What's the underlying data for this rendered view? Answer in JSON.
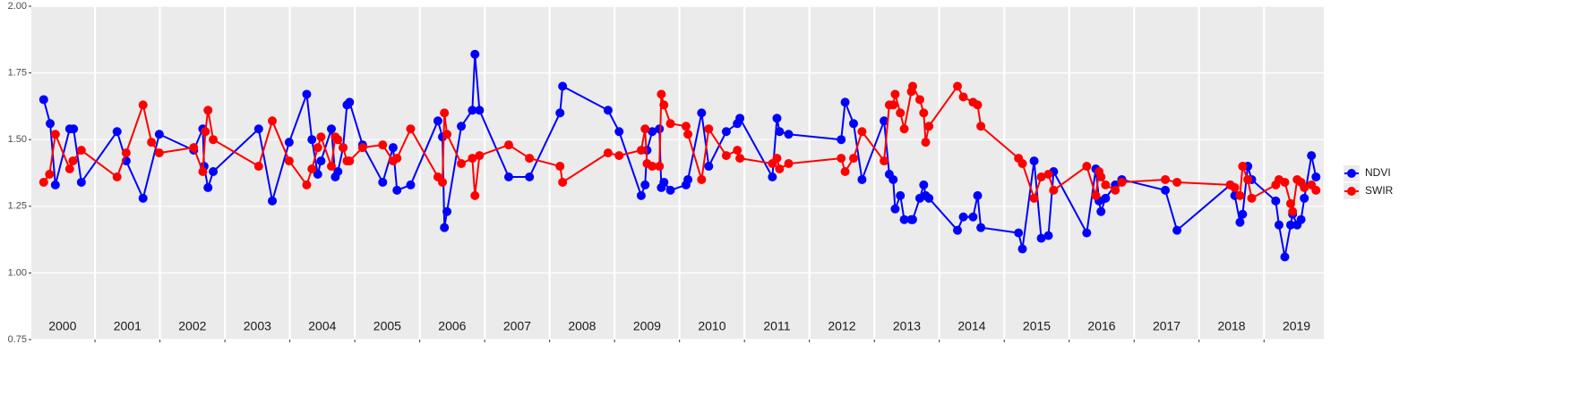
{
  "chart_data": {
    "type": "line",
    "xlim": [
      2000.02,
      2019.92
    ],
    "ylim": [
      0.75,
      2.0
    ],
    "yticks": [
      0.75,
      {
        "value": 1,
        "label": "1.00"
      },
      1.25,
      {
        "value": 1.5,
        "label": "1.50"
      },
      1.75,
      {
        "value": 2,
        "label": "2.00"
      }
    ],
    "xticks": [
      {
        "value": 2000.5,
        "label": "2000"
      },
      {
        "value": 2001.5,
        "label": "2001"
      },
      {
        "value": 2002.5,
        "label": "2002"
      },
      {
        "value": 2003.5,
        "label": "2003"
      },
      {
        "value": 2004.5,
        "label": "2004"
      },
      {
        "value": 2005.5,
        "label": "2005"
      },
      {
        "value": 2006.5,
        "label": "2006"
      },
      {
        "value": 2007.5,
        "label": "2007"
      },
      {
        "value": 2008.5,
        "label": "2008"
      },
      {
        "value": 2009.5,
        "label": "2009"
      },
      {
        "value": 2010.5,
        "label": "2010"
      },
      {
        "value": 2011.5,
        "label": "2011"
      },
      {
        "value": 2012.5,
        "label": "2012"
      },
      {
        "value": 2013.5,
        "label": "2013"
      },
      {
        "value": 2014.5,
        "label": "2014"
      },
      {
        "value": 2015.5,
        "label": "2015"
      },
      {
        "value": 2016.5,
        "label": "2016"
      },
      {
        "value": 2017.5,
        "label": "2017"
      },
      {
        "value": 2018.5,
        "label": "2018"
      },
      {
        "value": 2019.5,
        "label": "2019"
      }
    ],
    "xgrid": [
      2001,
      2002,
      2003,
      2004,
      2005,
      2006,
      2007,
      2008,
      2009,
      2010,
      2011,
      2012,
      2013,
      2014,
      2015,
      2016,
      2017,
      2018,
      2019
    ],
    "grid": true,
    "legend": "right",
    "series": [
      {
        "name": "NDVI",
        "color": "#0000ff",
        "x": [
          2000.21,
          2000.31,
          2000.39,
          2000.61,
          2000.67,
          2000.79,
          2001.34,
          2001.48,
          2001.74,
          2001.99,
          2002.52,
          2002.66,
          2002.68,
          2002.74,
          2002.82,
          2003.52,
          2003.73,
          2003.99,
          2004.26,
          2004.34,
          2004.43,
          2004.48,
          2004.64,
          2004.7,
          2004.74,
          2004.82,
          2004.88,
          2004.92,
          2005.12,
          2005.43,
          2005.59,
          2005.65,
          2005.86,
          2006.28,
          2006.35,
          2006.38,
          2006.42,
          2006.64,
          2006.81,
          2006.85,
          2006.92,
          2007.37,
          2007.69,
          2008.16,
          2008.2,
          2008.9,
          2009.07,
          2009.41,
          2009.47,
          2009.5,
          2009.58,
          2009.69,
          2009.72,
          2009.76,
          2009.86,
          2010.1,
          2010.13,
          2010.34,
          2010.45,
          2010.72,
          2010.89,
          2010.93,
          2011.43,
          2011.5,
          2011.54,
          2011.68,
          2012.49,
          2012.55,
          2012.68,
          2012.81,
          2013.15,
          2013.23,
          2013.29,
          2013.32,
          2013.4,
          2013.46,
          2013.57,
          2013.59,
          2013.7,
          2013.76,
          2013.79,
          2013.84,
          2014.28,
          2014.37,
          2014.52,
          2014.59,
          2014.64,
          2015.22,
          2015.28,
          2015.46,
          2015.57,
          2015.68,
          2015.76,
          2016.27,
          2016.41,
          2016.46,
          2016.49,
          2016.56,
          2016.71,
          2016.81,
          2017.48,
          2017.66,
          2018.48,
          2018.55,
          2018.63,
          2018.67,
          2018.75,
          2018.81,
          2019.18,
          2019.23,
          2019.32,
          2019.41,
          2019.44,
          2019.51,
          2019.57,
          2019.62,
          2019.73,
          2019.8
        ],
        "values": [
          1.65,
          1.56,
          1.33,
          1.54,
          1.54,
          1.34,
          1.53,
          1.42,
          1.28,
          1.52,
          1.46,
          1.54,
          1.4,
          1.32,
          1.38,
          1.54,
          1.27,
          1.49,
          1.67,
          1.5,
          1.37,
          1.42,
          1.54,
          1.36,
          1.38,
          1.47,
          1.63,
          1.64,
          1.48,
          1.34,
          1.47,
          1.31,
          1.33,
          1.57,
          1.51,
          1.17,
          1.23,
          1.55,
          1.61,
          1.82,
          1.61,
          1.36,
          1.36,
          1.6,
          1.7,
          1.61,
          1.53,
          1.29,
          1.33,
          1.46,
          1.53,
          1.54,
          1.32,
          1.34,
          1.31,
          1.33,
          1.35,
          1.6,
          1.4,
          1.53,
          1.56,
          1.58,
          1.36,
          1.58,
          1.53,
          1.52,
          1.5,
          1.64,
          1.56,
          1.35,
          1.57,
          1.37,
          1.35,
          1.24,
          1.29,
          1.2,
          1.2,
          1.2,
          1.28,
          1.33,
          1.29,
          1.28,
          1.16,
          1.21,
          1.21,
          1.29,
          1.17,
          1.15,
          1.09,
          1.42,
          1.13,
          1.14,
          1.38,
          1.15,
          1.39,
          1.27,
          1.23,
          1.28,
          1.33,
          1.35,
          1.31,
          1.16,
          1.33,
          1.29,
          1.19,
          1.22,
          1.4,
          1.35,
          1.27,
          1.18,
          1.06,
          1.18,
          1.22,
          1.18,
          1.2,
          1.28,
          1.44,
          1.36
        ]
      },
      {
        "name": "SWIR",
        "color": "#ff0000",
        "x": [
          2000.21,
          2000.3,
          2000.39,
          2000.61,
          2000.66,
          2000.79,
          2001.34,
          2001.48,
          2001.74,
          2001.87,
          2001.99,
          2002.52,
          2002.66,
          2002.7,
          2002.74,
          2002.82,
          2003.52,
          2003.73,
          2003.99,
          2004.26,
          2004.34,
          2004.43,
          2004.48,
          2004.64,
          2004.7,
          2004.74,
          2004.82,
          2004.88,
          2004.92,
          2005.12,
          2005.43,
          2005.59,
          2005.65,
          2005.86,
          2006.28,
          2006.35,
          2006.38,
          2006.42,
          2006.64,
          2006.81,
          2006.85,
          2006.92,
          2007.37,
          2007.69,
          2008.16,
          2008.2,
          2008.9,
          2009.07,
          2009.41,
          2009.47,
          2009.5,
          2009.58,
          2009.69,
          2009.72,
          2009.76,
          2009.86,
          2010.1,
          2010.13,
          2010.34,
          2010.45,
          2010.72,
          2010.89,
          2010.93,
          2011.43,
          2011.5,
          2011.54,
          2011.68,
          2012.49,
          2012.55,
          2012.68,
          2012.81,
          2013.15,
          2013.23,
          2013.29,
          2013.32,
          2013.4,
          2013.46,
          2013.57,
          2013.59,
          2013.7,
          2013.76,
          2013.79,
          2013.84,
          2014.28,
          2014.37,
          2014.52,
          2014.59,
          2014.64,
          2015.22,
          2015.28,
          2015.46,
          2015.57,
          2015.68,
          2015.76,
          2016.27,
          2016.41,
          2016.46,
          2016.49,
          2016.56,
          2016.71,
          2016.81,
          2017.48,
          2017.66,
          2018.48,
          2018.55,
          2018.63,
          2018.67,
          2018.75,
          2018.81,
          2019.18,
          2019.23,
          2019.32,
          2019.41,
          2019.44,
          2019.51,
          2019.57,
          2019.62,
          2019.73,
          2019.8
        ],
        "values": [
          1.34,
          1.37,
          1.52,
          1.39,
          1.42,
          1.46,
          1.36,
          1.45,
          1.63,
          1.49,
          1.45,
          1.47,
          1.38,
          1.53,
          1.61,
          1.5,
          1.4,
          1.57,
          1.42,
          1.33,
          1.39,
          1.47,
          1.51,
          1.4,
          1.51,
          1.5,
          1.47,
          1.42,
          1.42,
          1.47,
          1.48,
          1.42,
          1.43,
          1.54,
          1.36,
          1.34,
          1.6,
          1.52,
          1.41,
          1.43,
          1.29,
          1.44,
          1.48,
          1.43,
          1.4,
          1.34,
          1.45,
          1.44,
          1.46,
          1.54,
          1.41,
          1.4,
          1.4,
          1.67,
          1.63,
          1.56,
          1.55,
          1.52,
          1.35,
          1.54,
          1.44,
          1.46,
          1.43,
          1.41,
          1.43,
          1.39,
          1.41,
          1.43,
          1.38,
          1.43,
          1.53,
          1.42,
          1.63,
          1.63,
          1.67,
          1.6,
          1.54,
          1.68,
          1.7,
          1.65,
          1.6,
          1.49,
          1.55,
          1.7,
          1.66,
          1.64,
          1.63,
          1.55,
          1.43,
          1.41,
          1.28,
          1.36,
          1.37,
          1.31,
          1.4,
          1.29,
          1.38,
          1.36,
          1.33,
          1.31,
          1.34,
          1.35,
          1.34,
          1.33,
          1.32,
          1.29,
          1.4,
          1.35,
          1.28,
          1.33,
          1.35,
          1.34,
          1.26,
          1.23,
          1.35,
          1.34,
          1.32,
          1.33,
          1.31
        ]
      }
    ]
  }
}
